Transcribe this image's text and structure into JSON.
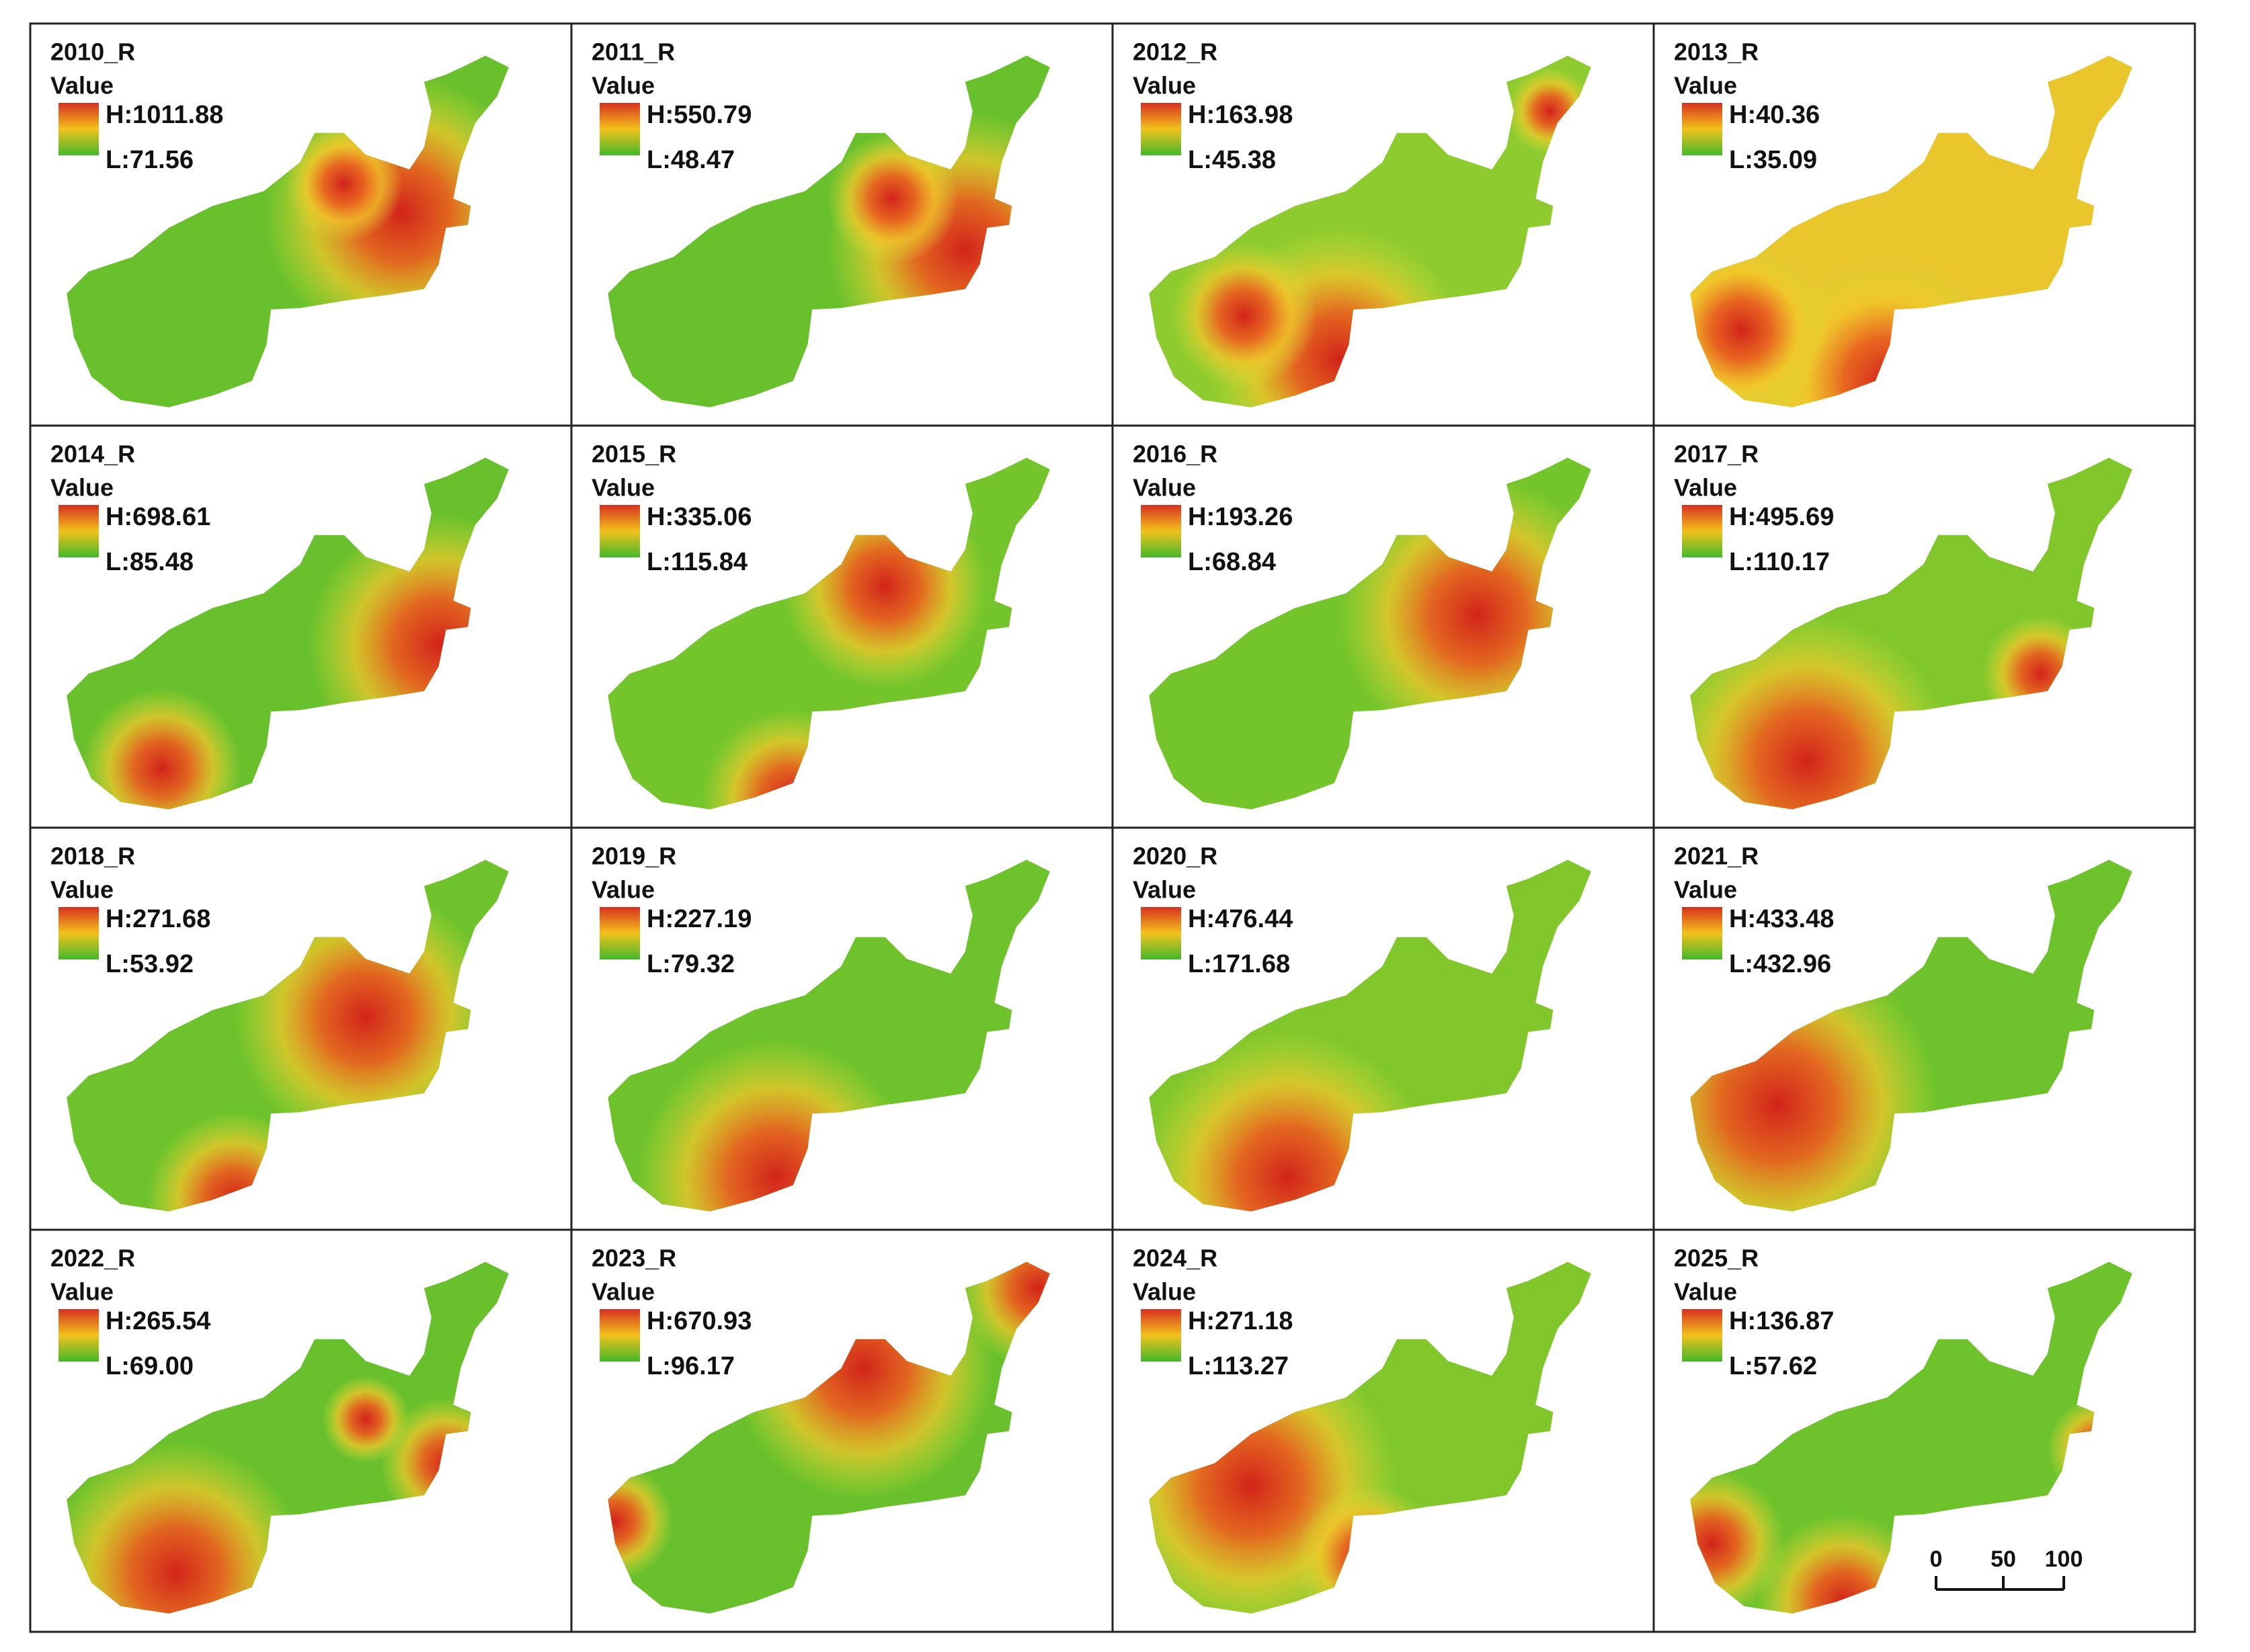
{
  "panels": [
    {
      "title": "2010_R",
      "legend_title": "Value",
      "high": "H:1011.88",
      "low": "L:71.56"
    },
    {
      "title": "2011_R",
      "legend_title": "Value",
      "high": "H:550.79",
      "low": "L:48.47"
    },
    {
      "title": "2012_R",
      "legend_title": "Value",
      "high": "H:163.98",
      "low": "L:45.38"
    },
    {
      "title": "2013_R",
      "legend_title": "Value",
      "high": "H:40.36",
      "low": "L:35.09"
    },
    {
      "title": "2014_R",
      "legend_title": "Value",
      "high": "H:698.61",
      "low": "L:85.48"
    },
    {
      "title": "2015_R",
      "legend_title": "Value",
      "high": "H:335.06",
      "low": "L:115.84"
    },
    {
      "title": "2016_R",
      "legend_title": "Value",
      "high": "H:193.26",
      "low": "L:68.84"
    },
    {
      "title": "2017_R",
      "legend_title": "Value",
      "high": "H:495.69",
      "low": "L:110.17"
    },
    {
      "title": "2018_R",
      "legend_title": "Value",
      "high": "H:271.68",
      "low": "L:53.92"
    },
    {
      "title": "2019_R",
      "legend_title": "Value",
      "high": "H:227.19",
      "low": "L:79.32"
    },
    {
      "title": "2020_R",
      "legend_title": "Value",
      "high": "H:476.44",
      "low": "L:171.68"
    },
    {
      "title": "2021_R",
      "legend_title": "Value",
      "high": "H:433.48",
      "low": "L:432.96"
    },
    {
      "title": "2022_R",
      "legend_title": "Value",
      "high": "H:265.54",
      "low": "L:69.00"
    },
    {
      "title": "2023_R",
      "legend_title": "Value",
      "high": "H:670.93",
      "low": "L:96.17"
    },
    {
      "title": "2024_R",
      "legend_title": "Value",
      "high": "H:271.18",
      "low": "L:113.27"
    },
    {
      "title": "2025_R",
      "legend_title": "Value",
      "high": "H:136.87",
      "low": "L:57.62"
    }
  ],
  "scale_bar": {
    "labels": [
      "0",
      "50",
      "100"
    ]
  }
}
